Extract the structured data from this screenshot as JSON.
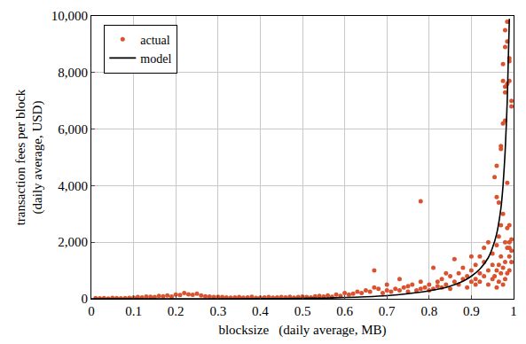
{
  "chart_data": {
    "type": "scatter",
    "x_label": "blocksize   (daily average, MB)",
    "y_label": [
      "transaction fees per block",
      "(daily average, USD)"
    ],
    "xlim": [
      0,
      1
    ],
    "xticks": [
      0,
      0.1,
      0.2,
      0.3,
      0.4,
      0.5,
      0.6,
      0.7,
      0.8,
      0.9,
      1
    ],
    "ylim": [
      0,
      10000
    ],
    "yticks": [
      0,
      {
        "value": 2000,
        "label": "2,000"
      },
      {
        "value": 4000,
        "label": "4,000"
      },
      {
        "value": 6000,
        "label": "6,000"
      },
      {
        "value": 8000,
        "label": "8,000"
      },
      {
        "value": 10000,
        "label": "10,000"
      }
    ],
    "grid": true,
    "legend": "upper left",
    "series": [
      {
        "name": "actual",
        "type": "scatter",
        "marker": "circle",
        "color": "#d9532f",
        "x": [
          0.01,
          0.02,
          0.03,
          0.04,
          0.05,
          0.06,
          0.07,
          0.08,
          0.09,
          0.1,
          0.11,
          0.12,
          0.13,
          0.14,
          0.15,
          0.16,
          0.17,
          0.18,
          0.19,
          0.2,
          0.21,
          0.22,
          0.23,
          0.24,
          0.25,
          0.26,
          0.27,
          0.28,
          0.29,
          0.3,
          0.31,
          0.32,
          0.33,
          0.34,
          0.35,
          0.36,
          0.37,
          0.38,
          0.39,
          0.4,
          0.41,
          0.42,
          0.43,
          0.44,
          0.45,
          0.46,
          0.47,
          0.48,
          0.49,
          0.5,
          0.51,
          0.52,
          0.53,
          0.54,
          0.55,
          0.56,
          0.57,
          0.58,
          0.59,
          0.6,
          0.61,
          0.62,
          0.63,
          0.64,
          0.65,
          0.66,
          0.67,
          0.67,
          0.68,
          0.69,
          0.7,
          0.7,
          0.71,
          0.72,
          0.73,
          0.73,
          0.74,
          0.75,
          0.75,
          0.76,
          0.77,
          0.78,
          0.78,
          0.78,
          0.79,
          0.8,
          0.8,
          0.81,
          0.81,
          0.82,
          0.82,
          0.83,
          0.83,
          0.84,
          0.84,
          0.85,
          0.85,
          0.86,
          0.86,
          0.87,
          0.87,
          0.88,
          0.88,
          0.89,
          0.89,
          0.9,
          0.9,
          0.9,
          0.91,
          0.91,
          0.91,
          0.92,
          0.92,
          0.92,
          0.93,
          0.93,
          0.93,
          0.94,
          0.94,
          0.94,
          0.95,
          0.95,
          0.95,
          0.955,
          0.955,
          0.96,
          0.96,
          0.96,
          0.96,
          0.965,
          0.965,
          0.965,
          0.97,
          0.97,
          0.97,
          0.97,
          0.97,
          0.975,
          0.975,
          0.975,
          0.975,
          0.975,
          0.98,
          0.98,
          0.98,
          0.98,
          0.98,
          0.98,
          0.98,
          0.98,
          0.985,
          0.985,
          0.985,
          0.985,
          0.985,
          0.985,
          0.985,
          0.99,
          0.99,
          0.99,
          0.99,
          0.99,
          0.99,
          0.99,
          0.99,
          0.995,
          0.995,
          0.995,
          0.995,
          0.995,
          0.975,
          0.965,
          0.96
        ],
        "values": [
          20,
          15,
          25,
          10,
          30,
          20,
          15,
          25,
          30,
          40,
          60,
          50,
          80,
          70,
          60,
          100,
          90,
          120,
          80,
          150,
          130,
          200,
          160,
          140,
          180,
          120,
          90,
          80,
          60,
          70,
          60,
          50,
          40,
          50,
          60,
          40,
          50,
          70,
          30,
          40,
          50,
          60,
          40,
          50,
          60,
          50,
          70,
          40,
          60,
          80,
          60,
          50,
          90,
          100,
          80,
          120,
          70,
          150,
          100,
          200,
          150,
          180,
          250,
          200,
          300,
          250,
          1000,
          400,
          350,
          200,
          300,
          500,
          250,
          350,
          700,
          300,
          400,
          250,
          450,
          500,
          300,
          3450,
          350,
          600,
          400,
          300,
          500,
          1100,
          350,
          450,
          600,
          400,
          700,
          500,
          900,
          350,
          800,
          600,
          1400,
          500,
          900,
          700,
          1100,
          800,
          400,
          1000,
          600,
          1500,
          700,
          1200,
          500,
          900,
          1500,
          600,
          1800,
          800,
          1300,
          1000,
          2000,
          500,
          1200,
          700,
          1600,
          4300,
          800,
          4700,
          3600,
          1000,
          1900,
          3400,
          600,
          2200,
          5300,
          5400,
          1500,
          900,
          2600,
          6200,
          8300,
          7700,
          1100,
          3000,
          7500,
          7300,
          8900,
          9500,
          6300,
          2000,
          1300,
          700,
          9100,
          9800,
          7600,
          4100,
          1800,
          2500,
          900,
          8400,
          8500,
          7700,
          2600,
          1800,
          2000,
          1500,
          1000,
          7000,
          6800,
          1700,
          1300,
          2100,
          500,
          1200,
          400
        ]
      },
      {
        "name": "model",
        "type": "line",
        "line_style": "solid",
        "color": "#000000",
        "x": [
          0,
          0.1,
          0.2,
          0.3,
          0.4,
          0.5,
          0.55,
          0.6,
          0.65,
          0.7,
          0.75,
          0.8,
          0.85,
          0.88,
          0.9,
          0.92,
          0.94,
          0.95,
          0.96,
          0.97,
          0.975,
          0.98,
          0.985,
          0.99
        ],
        "values": [
          0,
          0,
          0,
          0,
          5,
          15,
          25,
          45,
          70,
          110,
          180,
          280,
          450,
          620,
          800,
          1050,
          1450,
          1800,
          2300,
          3200,
          4000,
          5200,
          7000,
          9900
        ]
      }
    ]
  }
}
